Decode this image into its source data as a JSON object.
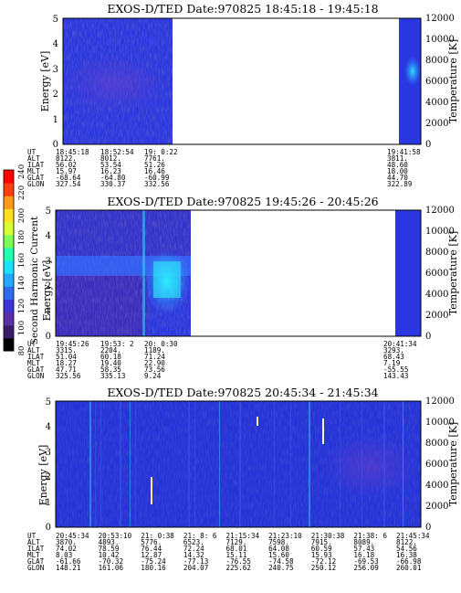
{
  "colors": {
    "background_low": "#1e2bd8",
    "background_mid": "#2c3ae8",
    "gap": "#ffffff",
    "colorbar": [
      "#000000",
      "#3a1d6a",
      "#5a2fa8",
      "#3f34d8",
      "#2f6cf0",
      "#21a8ff",
      "#19e3ff",
      "#22ffb0",
      "#7dff55",
      "#d9ff33",
      "#ffe020",
      "#ff9a18",
      "#ff3e10",
      "#ff0000"
    ]
  },
  "colorbar": {
    "label": "Second Harmonic Current",
    "ticks": [
      "80",
      "100",
      "120",
      "140",
      "160",
      "180",
      "200",
      "220",
      "240"
    ]
  },
  "chart_data": [
    {
      "type": "heatmap",
      "title": "EXOS-D/TED    Date:970825   18:45:18 - 19:45:18",
      "ylabel": "Energy [eV]",
      "y2label": "Temperature [K]",
      "ylim": [
        0,
        5
      ],
      "y2lim": [
        0,
        12000
      ],
      "yticks": [
        "0",
        "1",
        "2",
        "3",
        "4",
        "5"
      ],
      "y2ticks": [
        "0",
        "2000",
        "4000",
        "6000",
        "8000",
        "10000",
        "12000"
      ],
      "data_gap": [
        "19:08:30",
        "19:39:00"
      ],
      "table_labels": [
        "UT",
        "ALT",
        "ILAT",
        "MLT",
        "GLAT",
        "GLON"
      ],
      "columns": [
        {
          "UT": "18:45:18",
          "ALT": "8122.",
          "ILAT": "56.02",
          "MLT": "15.97",
          "GLAT": "-68.64",
          "GLON": "327.54"
        },
        {
          "UT": "18:52:54",
          "ALT": "8012.",
          "ILAT": "53.54",
          "MLT": "16.23",
          "GLAT": "-64.80",
          "GLON": "330.37"
        },
        {
          "UT": "19: 0:22",
          "ALT": "7761.",
          "ILAT": "51.26",
          "MLT": "16.46",
          "GLAT": "-60.99",
          "GLON": "332.56"
        },
        {
          "UT": "19:41:58",
          "ALT": "3811.",
          "ILAT": "48.60",
          "MLT": "18.00",
          "GLAT": "44.70",
          "GLON": "322.89"
        }
      ]
    },
    {
      "type": "heatmap",
      "title": "EXOS-D/TED    Date:970825   19:45:26 - 20:45:26",
      "ylabel": "Energy [eV]",
      "y2label": "Temperature [K]",
      "ylim": [
        0,
        5
      ],
      "y2lim": [
        0,
        12000
      ],
      "yticks": [
        "0",
        "1",
        "2",
        "3",
        "4",
        "5"
      ],
      "y2ticks": [
        "0",
        "2000",
        "4000",
        "6000",
        "8000",
        "10000",
        "12000"
      ],
      "data_gap": [
        "20:13:30",
        "20:40:30"
      ],
      "table_labels": [
        "UT",
        "ALT",
        "ILAT",
        "MLT",
        "GLAT",
        "GLON"
      ],
      "columns": [
        {
          "UT": "19:45:26",
          "ALT": "3315.",
          "ILAT": "51.04",
          "MLT": "18.27",
          "GLAT": "47.71",
          "GLON": "325.56"
        },
        {
          "UT": "19:53: 2",
          "ALT": "2204.",
          "ILAT": "60.18",
          "MLT": "19.40",
          "GLAT": "58.35",
          "GLON": "335.13"
        },
        {
          "UT": "20: 0:30",
          "ALT": "1189.",
          "ILAT": "71.24",
          "MLT": "22.90",
          "GLAT": "73.56",
          "GLON": "9.24"
        },
        {
          "UT": "20:41:34",
          "ALT": "3293.",
          "ILAT": "68.43",
          "MLT": "7.19",
          "GLAT": "-55.55",
          "GLON": "143.43"
        }
      ]
    },
    {
      "type": "heatmap",
      "title": "EXOS-D/TED    Date:970825   20:45:34 - 21:45:34",
      "ylabel": "Energy [eV]",
      "y2label": "Temperature [K]",
      "ylim": [
        0,
        5
      ],
      "y2lim": [
        0,
        12000
      ],
      "yticks": [
        "0",
        "1",
        "2",
        "3",
        "4",
        "5"
      ],
      "y2ticks": [
        "0",
        "2000",
        "4000",
        "6000",
        "8000",
        "10000",
        "12000"
      ],
      "table_labels": [
        "UT",
        "ALT",
        "ILAT",
        "MLT",
        "GLAT",
        "GLON"
      ],
      "columns": [
        {
          "UT": "20:45:34",
          "ALT": "3870.",
          "ILAT": "74.02",
          "MLT": "8.03",
          "GLAT": "-61.66",
          "GLON": "148.21"
        },
        {
          "UT": "20:53:10",
          "ALT": "4893.",
          "ILAT": "78.59",
          "MLT": "10.42",
          "GLAT": "-70.32",
          "GLON": "161.06"
        },
        {
          "UT": "21: 0:38",
          "ALT": "5776.",
          "ILAT": "76.44",
          "MLT": "12.87",
          "GLAT": "-75.24",
          "GLON": "180.16"
        },
        {
          "UT": "21: 8: 6",
          "ALT": "6523.",
          "ILAT": "72.24",
          "MLT": "14.32",
          "GLAT": "-77.13",
          "GLON": "204.07"
        },
        {
          "UT": "21:15:34",
          "ALT": "7129.",
          "ILAT": "68.01",
          "MLT": "15.11",
          "GLAT": "-76.55",
          "GLON": "225.62"
        },
        {
          "UT": "21:23:10",
          "ALT": "7598.",
          "ILAT": "64.08",
          "MLT": "15.60",
          "GLAT": "-74.58",
          "GLON": "240.75"
        },
        {
          "UT": "21:30:38",
          "ALT": "7915.",
          "ILAT": "60.59",
          "MLT": "15.93",
          "GLAT": "-72.12",
          "GLON": "250.12"
        },
        {
          "UT": "21:38: 6",
          "ALT": "8089.",
          "ILAT": "57.43",
          "MLT": "16.18",
          "GLAT": "-69.53",
          "GLON": "256.09"
        },
        {
          "UT": "21:45:34",
          "ALT": "8122.",
          "ILAT": "54.56",
          "MLT": "16.38",
          "GLAT": "-66.98",
          "GLON": "260.01"
        }
      ]
    }
  ]
}
